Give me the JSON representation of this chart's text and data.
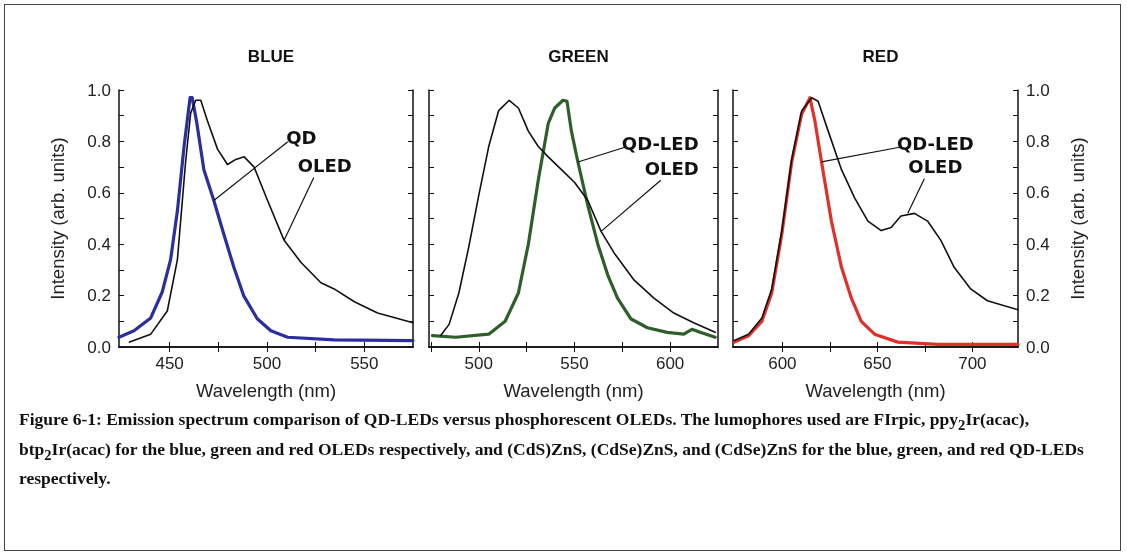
{
  "chart_data": [
    {
      "type": "line",
      "title": "BLUE",
      "xlabel": "Wavelength (nm)",
      "ylabel": "Intensity (arb. units)",
      "xlim": [
        424,
        575
      ],
      "ylim": [
        0,
        1
      ],
      "xticks": [
        {
          "value": 450,
          "label": "450"
        },
        {
          "value": 475,
          "label": null
        },
        {
          "value": 500,
          "label": "500"
        },
        {
          "value": 525,
          "label": null
        },
        {
          "value": 550,
          "label": "550"
        }
      ],
      "yticks": [
        {
          "value": 0,
          "label": "0.0"
        },
        {
          "value": 0.1,
          "label": null
        },
        {
          "value": 0.2,
          "label": "0.2"
        },
        {
          "value": 0.3,
          "label": null
        },
        {
          "value": 0.4,
          "label": "0.4"
        },
        {
          "value": 0.5,
          "label": null
        },
        {
          "value": 0.6,
          "label": "0.6"
        },
        {
          "value": 0.7,
          "label": null
        },
        {
          "value": 0.8,
          "label": "0.8"
        },
        {
          "value": 0.9,
          "label": null
        },
        {
          "value": 1,
          "label": "1.0"
        }
      ],
      "grid": false,
      "marker": "none",
      "line_style": "solid",
      "series": [
        {
          "color": "#2b2f9e",
          "x": [
            424,
            431.7,
            440.3,
            446.2,
            450.5,
            454,
            457.4,
            460.5,
            461.6,
            464,
            467.6,
            472.7,
            477.8,
            483,
            488,
            495,
            502,
            510.6,
            534.5,
            575
          ],
          "values": [
            0.038,
            0.063,
            0.113,
            0.214,
            0.34,
            0.53,
            0.78,
            0.97,
            0.97,
            0.87,
            0.69,
            0.57,
            0.44,
            0.31,
            0.2,
            0.11,
            0.063,
            0.038,
            0.028,
            0.025
          ]
        },
        {
          "color": "#111111",
          "x": [
            429.4,
            440.3,
            448.8,
            454,
            458.2,
            460.8,
            463.4,
            466,
            469.4,
            474.6,
            479.7,
            484,
            488.3,
            493.4,
            500.3,
            508.8,
            517.4,
            527.7,
            534.5,
            544.9,
            556.8,
            575
          ],
          "values": [
            0.019,
            0.05,
            0.14,
            0.34,
            0.72,
            0.91,
            0.96,
            0.96,
            0.88,
            0.77,
            0.71,
            0.73,
            0.74,
            0.7,
            0.57,
            0.415,
            0.33,
            0.25,
            0.226,
            0.176,
            0.132,
            0.094
          ]
        }
      ],
      "annotations": [
        {
          "text": "QD",
          "x": 472.7,
          "y": 0.57
        },
        {
          "text": "OLED",
          "x": 508.8,
          "y": 0.415
        },
        "Figure 6-1: Emission spectrum comparison of QD-LEDs versus phosphorescent OLEDs.  The lumophores used are FIrpic, ppy$_{2}$Ir(acac), btp$_{2}$Ir(acac) for the blue, green and red OLEDs respectively, and (CdS)ZnS, (CdSe)ZnS, and (CdSe)ZnS for the blue, green, and red QD-LEDs respectively."
      ]
    },
    {
      "type": "line",
      "title": "GREEN",
      "xlabel": "Wavelength (nm)",
      "xlim": [
        474,
        625
      ],
      "ylim": [
        0,
        1
      ],
      "tick_labels": "x",
      "xticks": [
        {
          "value": 475,
          "label": null
        },
        {
          "value": 500,
          "label": "500"
        },
        {
          "value": 525,
          "label": null
        },
        {
          "value": 550,
          "label": "550"
        },
        {
          "value": 575,
          "label": null
        },
        {
          "value": 600,
          "label": "600"
        }
      ],
      "yticks": [
        {
          "value": 0,
          "label": null
        },
        {
          "value": 0.1,
          "label": null
        },
        {
          "value": 0.2,
          "label": null
        },
        {
          "value": 0.3,
          "label": null
        },
        {
          "value": 0.4,
          "label": null
        },
        {
          "value": 0.5,
          "label": null
        },
        {
          "value": 0.6,
          "label": null
        },
        {
          "value": 0.7,
          "label": null
        },
        {
          "value": 0.8,
          "label": null
        },
        {
          "value": 0.9,
          "label": null
        },
        {
          "value": 1,
          "label": null
        }
      ],
      "grid": false,
      "marker": "none",
      "line_style": "solid",
      "series": [
        {
          "color": "#2e5e2a",
          "x": [
            475.8,
            487.9,
            505.2,
            513.8,
            520.7,
            525.9,
            531.1,
            536.3,
            539.7,
            544,
            546.1,
            548.4,
            551.8,
            557,
            562.2,
            567.4,
            572.5,
            579.4,
            588.1,
            598.4,
            607.1,
            611.4,
            615.7,
            623.5
          ],
          "values": [
            0.044,
            0.038,
            0.05,
            0.1,
            0.21,
            0.4,
            0.65,
            0.87,
            0.93,
            0.96,
            0.956,
            0.84,
            0.72,
            0.55,
            0.4,
            0.28,
            0.19,
            0.11,
            0.075,
            0.057,
            0.05,
            0.069,
            0.057,
            0.038
          ]
        },
        {
          "color": "#111111",
          "x": [
            480,
            484.5,
            489.6,
            494.8,
            500,
            505.2,
            510.4,
            515.9,
            520.7,
            525.9,
            531.1,
            536.3,
            543.2,
            550.1,
            557,
            563.9,
            570.8,
            581.2,
            591.5,
            601.9,
            612.3,
            623.5
          ],
          "values": [
            0.044,
            0.088,
            0.21,
            0.39,
            0.59,
            0.78,
            0.92,
            0.96,
            0.93,
            0.84,
            0.78,
            0.74,
            0.69,
            0.64,
            0.57,
            0.45,
            0.365,
            0.26,
            0.19,
            0.132,
            0.094,
            0.057
          ]
        }
      ],
      "annotations": [
        {
          "text": "QD-LED",
          "x": 551.8,
          "y": 0.72
        },
        {
          "text": "OLED",
          "x": 563.9,
          "y": 0.45
        }
      ]
    },
    {
      "type": "line",
      "title": "RED",
      "xlabel": "Wavelength (nm)",
      "ylabel": "Intensity (arb. units)",
      "xlim": [
        574,
        724
      ],
      "ylim": [
        0,
        1
      ],
      "xticks": [
        {
          "value": 600,
          "label": "600"
        },
        {
          "value": 625,
          "label": null
        },
        {
          "value": 650,
          "label": "650"
        },
        {
          "value": 675,
          "label": null
        },
        {
          "value": 700,
          "label": "700"
        }
      ],
      "yticks": [
        {
          "value": 0,
          "label": "0.0"
        },
        {
          "value": 0.1,
          "label": null
        },
        {
          "value": 0.2,
          "label": "0.2"
        },
        {
          "value": 0.3,
          "label": null
        },
        {
          "value": 0.4,
          "label": "0.4"
        },
        {
          "value": 0.5,
          "label": null
        },
        {
          "value": 0.6,
          "label": "0.6"
        },
        {
          "value": 0.7,
          "label": null
        },
        {
          "value": 0.8,
          "label": "0.8"
        },
        {
          "value": 0.9,
          "label": null
        },
        {
          "value": 1,
          "label": "1.0"
        }
      ],
      "grid": false,
      "marker": "none",
      "line_style": "solid",
      "series": [
        {
          "color": "#e0302a",
          "x": [
            574.7,
            582.2,
            589.2,
            594.4,
            599.7,
            604.9,
            610.1,
            614.5,
            617.1,
            620.6,
            625.8,
            631.1,
            636.3,
            641.5,
            648.5,
            660.7,
            681.7,
            724
          ],
          "values": [
            0.019,
            0.044,
            0.1,
            0.21,
            0.44,
            0.72,
            0.906,
            0.97,
            0.88,
            0.72,
            0.49,
            0.31,
            0.19,
            0.1,
            0.05,
            0.019,
            0.01,
            0.01
          ]
        },
        {
          "color": "#111111",
          "x": [
            574.7,
            582.2,
            589.2,
            594.4,
            599.7,
            604.9,
            610.1,
            615.4,
            618.8,
            624.1,
            631.1,
            638,
            645,
            652,
            657.2,
            662.4,
            669.5,
            676.4,
            683.4,
            690.4,
            699.1,
            707.9,
            724
          ],
          "values": [
            0.025,
            0.05,
            0.113,
            0.226,
            0.453,
            0.73,
            0.918,
            0.97,
            0.956,
            0.84,
            0.69,
            0.58,
            0.49,
            0.453,
            0.465,
            0.51,
            0.52,
            0.49,
            0.415,
            0.31,
            0.226,
            0.18,
            0.145
          ]
        }
      ],
      "annotations": [
        {
          "text": "QD-LED",
          "x": 620.6,
          "y": 0.72
        },
        {
          "text": "OLED",
          "x": 666,
          "y": 0.52
        }
      ]
    }
  ]
}
